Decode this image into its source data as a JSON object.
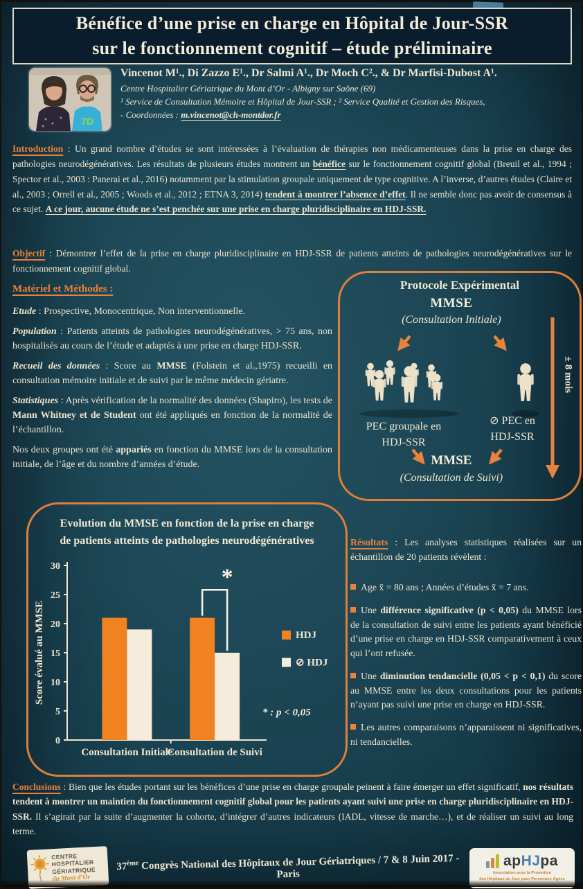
{
  "poster": {
    "title": {
      "line1": "Bénéfice d’une prise en charge en Hôpital de Jour-SSR",
      "line2": "sur le fonctionnement cognitif – étude préliminaire"
    },
    "authors": {
      "names": "Vincenot M¹., Di Zazzo E¹., Dr Salmi A¹., Dr Moch C²., & Dr Marfisi-Dubost A¹.",
      "affiliation": "Centre Hospitalier Gériatrique du Mont d’Or - Albigny sur Saône (69)",
      "services": "¹ Service de Consultation Mémoire et Hôpital de Jour-SSR ; ² Service Qualité et Gestion des Risques,",
      "contact_label": "- Coordonnées : ",
      "contact_email": "m.vincenot@ch-montdor.fr"
    },
    "introduction": {
      "heading": "Introduction",
      "sep": " : ",
      "t1": "Un grand nombre d’études se sont intéressées à l’évaluation de thérapies non médicamenteuses dans la prise en charge des pathologies neurodégénératives. Les résultats de plusieurs études montrent un ",
      "b1": "bénéfice",
      "t2": " sur le fonctionnement cognitif global (Breuil et al., 1994 ; Spector et al., 2003 : Panerai et al., 2016) notamment par la stimulation groupale uniquement de type cognitive. A l’inverse, d’autres études (Claire et al., 2003 ; Orrell et al., 2005 ; Woods et al., 2012 ; ETNA 3, 2014) ",
      "b2": "tendent à montrer l’absence d’effet",
      "t3": ". Il ne semble donc pas avoir de consensus à ce sujet. ",
      "b3": "A ce jour, aucune étude ne s’est penchée sur une prise en charge pluridisciplinaire en HDJ-SSR."
    },
    "objectif": {
      "heading": "Objectif",
      "body": " : Démontrer l’effet de la prise en charge pluridisciplinaire en HDJ-SSR de patients atteints de pathologies neurodégénératives sur le fonctionnement cognitif global."
    },
    "methodes": {
      "heading": "Matériel et Méthodes :",
      "etude_label": "Etude",
      "etude_text": " : Prospective, Monocentrique, Non interventionnelle.",
      "population_label": "Population",
      "population_text": " : Patients atteints de pathologies neurodégénératives, > 75 ans, non hospitalisés au cours de l’étude et adaptés à une prise en charge HDJ-SSR.",
      "recueil_label": "Recueil des données",
      "recueil_t1": " : Score au ",
      "recueil_b1": "MMSE",
      "recueil_t2": " (Folstein et al.,1975) recueilli en consultation mémoire initiale et de suivi par le même médecin gériatre.",
      "stats_label": "Statistiques",
      "stats_t1": " : Après vérification de la normalité des données (Shapiro), les tests de ",
      "stats_b1": "Mann Whitney et de Student",
      "stats_t2": " ont été appliqués en fonction de la normalité de l’échantillon.",
      "groupes_t1": "Nos deux groupes ont été ",
      "groupes_b1": "appariés",
      "groupes_t2": " en fonction du MMSE lors de la consultation initiale, de l’âge et du nombre d’années d’étude."
    },
    "protocole": {
      "title": "Protocole Expérimental",
      "mmse_initial": "MMSE",
      "consult_initial": "(Consultation Initiale)",
      "pec_group_l1": "PEC groupale en",
      "pec_group_l2": "HDJ-SSR",
      "pec_none_l1": "⊘ PEC en",
      "pec_none_l2": "HDJ-SSR",
      "mmse_suivi": "MMSE",
      "consult_suivi": "(Consultation de Suivi)",
      "duration": "± 8 mois"
    },
    "resultats": {
      "heading": "Résultats",
      "intro": " : Les analyses statistiques réalisées sur un échantillon de 20 patients révèlent :",
      "b1": "Age  x̄ = 80 ans ; Années d’études  x̄ = 7 ans.",
      "b2_pre": "Une ",
      "b2_bold": "différence significative (p < 0,05)",
      "b2_post": " du MMSE lors de la consultation de suivi entre les patients ayant bénéficié d’une prise en charge en HDJ-SSR comparativement à ceux qui l’ont refusée.",
      "b3_pre": "Une ",
      "b3_bold": "diminution tendancielle (0,05 < p < 0,1)",
      "b3_post": " du score au MMSE entre les deux consultations pour les patients n’ayant pas suivi une prise en charge en HDJ-SSR.",
      "b4": "Les autres comparaisons n’apparaissent ni significatives, ni tendancielles."
    },
    "conclusions": {
      "heading": "Conclusions",
      "t1": " : Bien que les études portant sur les bénéfices d’une prise en charge groupale peinent à faire émerger un effet significatif, ",
      "b1": "nos résultats tendent à montrer un maintien du fonctionnement cognitif global pour les patients ayant suivi une prise en charge pluridisciplinaire en HDJ-SSR.",
      "t2": " Il s’agirait par la suite d’augmenter la cohorte, d’intégrer d’autres indicateurs (IADL, vitesse de marche…), et de réaliser un suivi au long terme."
    },
    "footer": {
      "congress_num": "37",
      "congress_sup": "ème",
      "congress_rest": " Congrès National des Hôpitaux de Jour Gériatriques / 7 & 8 Juin 2017 - Paris",
      "logo_chg": {
        "l1": "CENTRE",
        "l2": "HOSPITALIER",
        "l3": "GÉRIATRIQUE",
        "script": "du Mont d’Or"
      },
      "logo_aphjpa": {
        "ap": "ap",
        "hj": "HJ",
        "pa": "pa",
        "sub1": "Association pour la Promotion",
        "sub2": "des Hôpitaux de Jour pour Personnes Âgées"
      }
    }
  },
  "chart_data": {
    "type": "bar",
    "title": "Evolution du MMSE en fonction de la prise en charge de patients atteints de pathologies neurodégénératives",
    "title_line1": "Evolution du MMSE en fonction de la prise en charge",
    "title_line2": "de patients atteints de pathologies neurodégénératives",
    "categories": [
      "Consultation Initiale",
      "Consultation de Suivi"
    ],
    "series": [
      {
        "name": "HDJ",
        "color": "#f0831f",
        "values": [
          21,
          21
        ]
      },
      {
        "name": "⊘ HDJ",
        "color": "#f6ecdb",
        "values": [
          19,
          15
        ]
      }
    ],
    "ylabel": "Score évalué au MMSE",
    "ylim": [
      0,
      30
    ],
    "yticks": [
      0,
      5,
      10,
      15,
      20,
      25,
      30
    ],
    "grid": false,
    "legend_position": "right",
    "significance": {
      "group": "Consultation de Suivi",
      "marker": "*",
      "note": "* : p < 0,05"
    }
  },
  "colors": {
    "poster_background": "#1d4756",
    "title_band": "#0a1d2d",
    "accent_orange": "#e8813c",
    "body_cream": "#ece3cc",
    "bar_orange": "#f0831f",
    "bar_cream": "#f6ecdb"
  }
}
